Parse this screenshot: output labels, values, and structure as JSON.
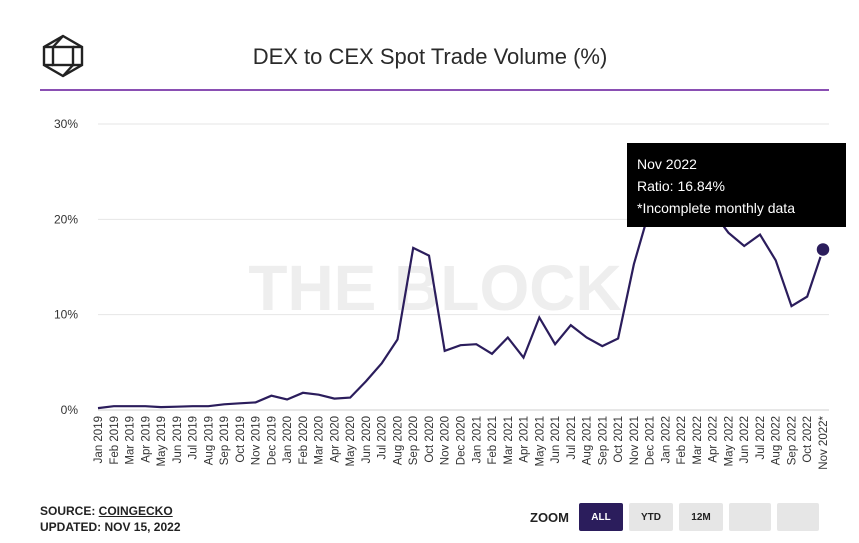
{
  "header": {
    "title": "DEX to CEX Spot Trade Volume (%)"
  },
  "footer": {
    "source_prefix": "SOURCE: ",
    "source_name": "COINGECKO",
    "updated": "UPDATED: NOV 15, 2022"
  },
  "zoom": {
    "label": "ZOOM",
    "buttons": [
      "ALL",
      "YTD",
      "12M"
    ],
    "active": "ALL"
  },
  "watermark": "THE BLOCK",
  "tooltip": {
    "line1": "Nov 2022",
    "line2": "Ratio: 16.84%",
    "line3": "*Incomplete monthly data"
  },
  "colors": {
    "line": "#2b1d5c",
    "accent_rule": "#8a4fb3",
    "grid": "#e6e6e6"
  },
  "chart_data": {
    "type": "line",
    "title": "DEX to CEX Spot Trade Volume (%)",
    "xlabel": "",
    "ylabel": "",
    "ylim": [
      0,
      30
    ],
    "yticks": [
      "0%",
      "10%",
      "20%",
      "30%"
    ],
    "grid": true,
    "categories": [
      "Jan 2019",
      "Feb 2019",
      "Mar 2019",
      "Apr 2019",
      "May 2019",
      "Jun 2019",
      "Jul 2019",
      "Aug 2019",
      "Sep 2019",
      "Oct 2019",
      "Nov 2019",
      "Dec 2019",
      "Jan 2020",
      "Feb 2020",
      "Mar 2020",
      "Apr 2020",
      "May 2020",
      "Jun 2020",
      "Jul 2020",
      "Aug 2020",
      "Sep 2020",
      "Oct 2020",
      "Nov 2020",
      "Dec 2020",
      "Jan 2021",
      "Feb 2021",
      "Mar 2021",
      "Apr 2021",
      "May 2021",
      "Jun 2021",
      "Jul 2021",
      "Aug 2021",
      "Sep 2021",
      "Oct 2021",
      "Nov 2021",
      "Dec 2021",
      "Jan 2022",
      "Feb 2022",
      "Mar 2022",
      "Apr 2022",
      "May 2022",
      "Jun 2022",
      "Jul 2022",
      "Aug 2022",
      "Sep 2022",
      "Oct 2022",
      "Nov 2022*"
    ],
    "values": [
      0.2,
      0.4,
      0.4,
      0.4,
      0.3,
      0.35,
      0.4,
      0.4,
      0.6,
      0.7,
      0.8,
      1.5,
      1.1,
      1.8,
      1.6,
      1.2,
      1.3,
      3.0,
      4.9,
      7.4,
      17.0,
      16.2,
      6.2,
      6.8,
      6.9,
      5.9,
      7.6,
      5.5,
      9.7,
      6.9,
      8.9,
      7.6,
      6.7,
      7.5,
      15.3,
      21.0,
      21.5,
      21.3,
      21.8,
      20.8,
      18.6,
      17.2,
      18.4,
      15.7,
      10.9,
      11.9,
      16.84
    ],
    "highlight_index": 46
  }
}
